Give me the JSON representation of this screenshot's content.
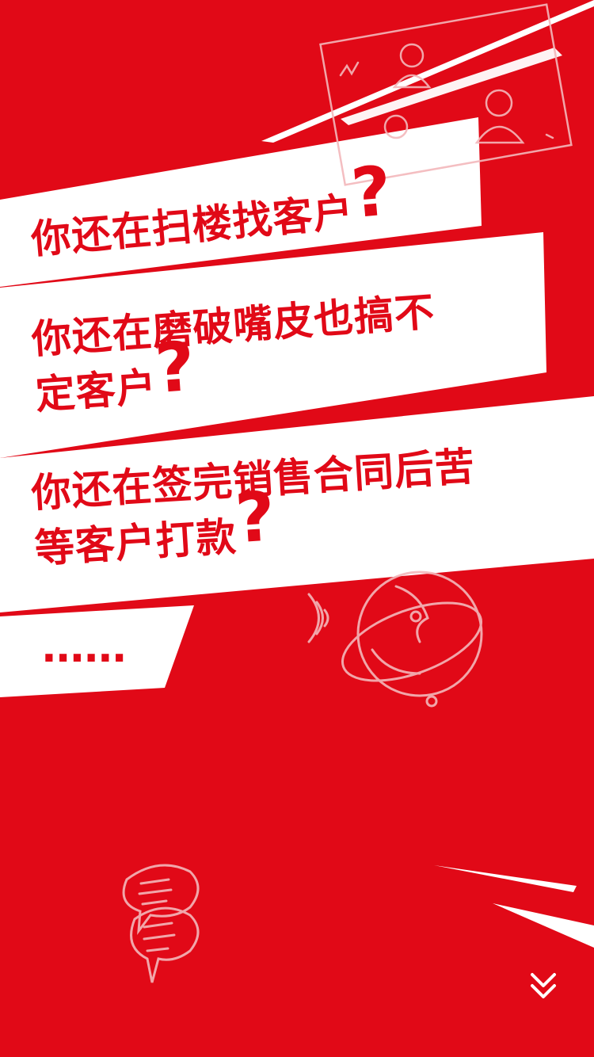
{
  "questions": [
    {
      "text": "你还在扫楼找客户",
      "mark": "?"
    },
    {
      "line1": "你还在磨破嘴皮也搞不",
      "line2": "定客户",
      "mark": "?"
    },
    {
      "line1": "你还在签完销售合同后苦",
      "line2": "等客户打款",
      "mark": "?"
    }
  ],
  "ellipsis": "......",
  "colors": {
    "background": "#e10917",
    "panel": "#ffffff",
    "text": "#e10917",
    "doodle": "#f3b7bb"
  },
  "icons": [
    "speech-bubbles-icon",
    "globe-icon",
    "people-chart-icon",
    "scroll-down-icon"
  ]
}
